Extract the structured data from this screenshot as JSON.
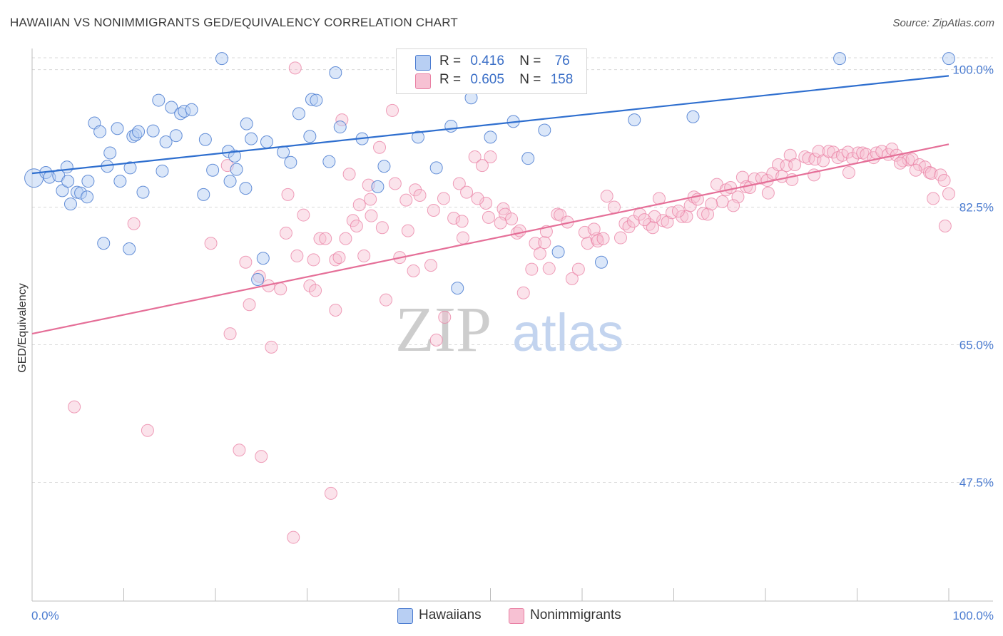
{
  "title": "HAWAIIAN VS NONIMMIGRANTS GED/EQUIVALENCY CORRELATION CHART",
  "source": "Source: ZipAtlas.com",
  "colors": {
    "blue": "#4a7bd0",
    "blue_fill": "#b8cff3",
    "blue_line": "#2f6fcf",
    "pink": "#e97fa3",
    "pink_fill": "#f7c1d3",
    "pink_line": "#e56f98",
    "grid": "#d9d9d9",
    "watermark": "#c9c9c9"
  },
  "legend": {
    "rows": [
      {
        "r_label": "R =",
        "r_value": "0.416",
        "n_label": "N =",
        "n_value": "76"
      },
      {
        "r_label": "R =",
        "r_value": "0.605",
        "n_label": "N =",
        "n_value": "158"
      }
    ]
  },
  "watermark": {
    "zip": "ZIP",
    "atlas": "atlas"
  },
  "chart_data": {
    "type": "scatter",
    "xlabel": "",
    "ylabel": "GED/Equivalency",
    "xlim": [
      0,
      100
    ],
    "ylim": [
      32.4,
      102.5
    ],
    "x_tick_labels": [
      "0.0%",
      "100.0%"
    ],
    "y_ticks": [
      100.0,
      82.5,
      65.0,
      47.5
    ],
    "y_tick_labels": [
      "100.0%",
      "82.5%",
      "65.0%",
      "47.5%"
    ],
    "grid": "horizontal dashed",
    "legend_placement": "bottom-center",
    "series": [
      {
        "name": "Hawaiians",
        "color": "#4a7bd0",
        "trend": {
          "x": [
            0,
            100
          ],
          "y": [
            86.8,
            99.2
          ]
        },
        "points": [
          [
            0.2,
            86.2
          ],
          [
            1.5,
            86.9
          ],
          [
            1.9,
            86.3
          ],
          [
            2.9,
            86.5
          ],
          [
            3.8,
            87.6
          ],
          [
            3.3,
            84.6
          ],
          [
            3.9,
            85.8
          ],
          [
            4.2,
            82.9
          ],
          [
            4.9,
            84.4
          ],
          [
            5.3,
            84.3
          ],
          [
            6.0,
            83.8
          ],
          [
            6.1,
            85.8
          ],
          [
            6.8,
            93.2
          ],
          [
            7.4,
            92.1
          ],
          [
            7.8,
            77.9
          ],
          [
            8.2,
            87.7
          ],
          [
            8.5,
            89.4
          ],
          [
            9.3,
            92.5
          ],
          [
            9.6,
            85.8
          ],
          [
            10.6,
            77.2
          ],
          [
            10.7,
            87.5
          ],
          [
            11.0,
            91.5
          ],
          [
            11.3,
            91.7
          ],
          [
            11.6,
            92.1
          ],
          [
            12.1,
            84.4
          ],
          [
            13.2,
            92.2
          ],
          [
            13.8,
            96.1
          ],
          [
            14.2,
            87.1
          ],
          [
            14.6,
            90.8
          ],
          [
            15.2,
            95.2
          ],
          [
            15.7,
            91.6
          ],
          [
            16.2,
            94.4
          ],
          [
            16.6,
            94.7
          ],
          [
            17.4,
            94.9
          ],
          [
            18.9,
            91.1
          ],
          [
            18.7,
            84.1
          ],
          [
            19.7,
            87.2
          ],
          [
            20.7,
            101.4
          ],
          [
            21.4,
            89.6
          ],
          [
            21.6,
            85.8
          ],
          [
            22.1,
            89.0
          ],
          [
            22.3,
            87.3
          ],
          [
            23.3,
            84.9
          ],
          [
            23.4,
            93.1
          ],
          [
            23.9,
            91.2
          ],
          [
            24.6,
            73.3
          ],
          [
            25.2,
            76.0
          ],
          [
            25.6,
            90.8
          ],
          [
            27.4,
            89.5
          ],
          [
            28.2,
            88.2
          ],
          [
            29.1,
            94.4
          ],
          [
            30.3,
            91.5
          ],
          [
            30.5,
            96.2
          ],
          [
            31.0,
            96.1
          ],
          [
            32.4,
            88.3
          ],
          [
            33.1,
            99.6
          ],
          [
            33.6,
            92.7
          ],
          [
            36.0,
            91.2
          ],
          [
            37.7,
            85.1
          ],
          [
            38.4,
            87.7
          ],
          [
            42.1,
            91.4
          ],
          [
            44.1,
            87.5
          ],
          [
            45.7,
            92.8
          ],
          [
            46.4,
            72.2
          ],
          [
            47.9,
            96.4
          ],
          [
            50.0,
            91.4
          ],
          [
            52.5,
            93.4
          ],
          [
            54.1,
            88.7
          ],
          [
            65.7,
            93.6
          ],
          [
            72.1,
            94.0
          ],
          [
            88.1,
            101.4
          ],
          [
            100.0,
            101.4
          ],
          [
            48.9,
            101.2
          ],
          [
            55.9,
            92.3
          ],
          [
            57.4,
            76.8
          ],
          [
            62.1,
            75.5
          ]
        ]
      },
      {
        "name": "Nonimmigrants",
        "color": "#e97fa3",
        "trend": {
          "x": [
            0,
            100
          ],
          "y": [
            66.4,
            90.5
          ]
        },
        "points": [
          [
            4.6,
            57.1
          ],
          [
            11.1,
            80.4
          ],
          [
            12.6,
            54.1
          ],
          [
            19.5,
            77.9
          ],
          [
            21.3,
            87.8
          ],
          [
            21.6,
            66.4
          ],
          [
            22.6,
            51.6
          ],
          [
            23.3,
            75.5
          ],
          [
            23.7,
            70.1
          ],
          [
            24.8,
            73.7
          ],
          [
            25.0,
            50.8
          ],
          [
            25.8,
            72.5
          ],
          [
            26.1,
            64.7
          ],
          [
            27.1,
            72.1
          ],
          [
            27.7,
            79.2
          ],
          [
            27.9,
            84.1
          ],
          [
            28.5,
            40.5
          ],
          [
            28.7,
            100.2
          ],
          [
            28.9,
            76.3
          ],
          [
            29.6,
            81.5
          ],
          [
            30.3,
            72.5
          ],
          [
            30.7,
            75.8
          ],
          [
            30.9,
            71.9
          ],
          [
            31.4,
            78.5
          ],
          [
            32.0,
            78.5
          ],
          [
            32.6,
            46.1
          ],
          [
            33.1,
            69.4
          ],
          [
            33.1,
            75.8
          ],
          [
            33.5,
            76.1
          ],
          [
            33.8,
            93.6
          ],
          [
            34.6,
            86.7
          ],
          [
            35.0,
            80.8
          ],
          [
            35.4,
            80.1
          ],
          [
            36.2,
            76.3
          ],
          [
            36.7,
            85.3
          ],
          [
            37.0,
            81.4
          ],
          [
            37.9,
            90.1
          ],
          [
            38.6,
            70.7
          ],
          [
            39.3,
            94.8
          ],
          [
            40.1,
            76.1
          ],
          [
            41.0,
            79.5
          ],
          [
            41.6,
            74.4
          ],
          [
            41.8,
            84.7
          ],
          [
            42.3,
            84.0
          ],
          [
            43.5,
            75.1
          ],
          [
            44.1,
            65.6
          ],
          [
            44.9,
            83.6
          ],
          [
            45.0,
            68.5
          ],
          [
            46.0,
            81.1
          ],
          [
            46.6,
            85.5
          ],
          [
            47.0,
            78.6
          ],
          [
            47.4,
            84.4
          ],
          [
            48.3,
            88.9
          ],
          [
            49.1,
            87.8
          ],
          [
            49.5,
            83.0
          ],
          [
            49.8,
            81.2
          ],
          [
            50.0,
            88.9
          ],
          [
            51.4,
            82.3
          ],
          [
            51.6,
            81.6
          ],
          [
            52.3,
            81.0
          ],
          [
            52.9,
            79.2
          ],
          [
            53.6,
            71.6
          ],
          [
            54.5,
            74.6
          ],
          [
            54.9,
            77.9
          ],
          [
            55.4,
            76.6
          ],
          [
            55.9,
            78.0
          ],
          [
            56.4,
            74.7
          ],
          [
            57.3,
            81.6
          ],
          [
            57.6,
            81.5
          ],
          [
            58.9,
            73.4
          ],
          [
            59.6,
            74.6
          ],
          [
            60.3,
            79.3
          ],
          [
            60.6,
            77.9
          ],
          [
            61.6,
            78.5
          ],
          [
            61.7,
            78.2
          ],
          [
            62.3,
            78.5
          ],
          [
            62.7,
            83.9
          ],
          [
            63.5,
            82.5
          ],
          [
            64.7,
            80.4
          ],
          [
            65.1,
            80.0
          ],
          [
            65.6,
            80.7
          ],
          [
            66.3,
            81.6
          ],
          [
            67.3,
            80.3
          ],
          [
            67.7,
            79.9
          ],
          [
            68.4,
            83.6
          ],
          [
            68.8,
            80.8
          ],
          [
            69.3,
            80.6
          ],
          [
            69.8,
            81.8
          ],
          [
            70.9,
            81.3
          ],
          [
            71.4,
            81.3
          ],
          [
            71.8,
            82.7
          ],
          [
            72.2,
            83.8
          ],
          [
            73.2,
            81.7
          ],
          [
            73.7,
            81.6
          ],
          [
            74.7,
            85.4
          ],
          [
            75.3,
            83.2
          ],
          [
            75.7,
            84.7
          ],
          [
            76.2,
            85.0
          ],
          [
            77.0,
            83.8
          ],
          [
            77.5,
            86.3
          ],
          [
            77.9,
            85.1
          ],
          [
            78.3,
            85.0
          ],
          [
            78.8,
            86.1
          ],
          [
            79.6,
            86.2
          ],
          [
            80.2,
            85.9
          ],
          [
            80.8,
            86.8
          ],
          [
            81.4,
            87.9
          ],
          [
            81.8,
            86.4
          ],
          [
            82.3,
            87.8
          ],
          [
            82.7,
            89.1
          ],
          [
            83.2,
            87.9
          ],
          [
            84.3,
            88.9
          ],
          [
            84.7,
            88.7
          ],
          [
            85.4,
            88.6
          ],
          [
            85.8,
            89.6
          ],
          [
            86.3,
            88.4
          ],
          [
            86.9,
            89.6
          ],
          [
            87.4,
            89.5
          ],
          [
            87.9,
            88.8
          ],
          [
            88.4,
            89.1
          ],
          [
            89.0,
            89.5
          ],
          [
            89.5,
            88.7
          ],
          [
            90.1,
            89.4
          ],
          [
            90.6,
            89.4
          ],
          [
            91.0,
            89.2
          ],
          [
            91.8,
            88.8
          ],
          [
            92.1,
            89.4
          ],
          [
            92.7,
            89.6
          ],
          [
            93.4,
            89.2
          ],
          [
            93.8,
            89.9
          ],
          [
            94.3,
            89.1
          ],
          [
            95.0,
            88.4
          ],
          [
            95.6,
            88.5
          ],
          [
            96.0,
            88.6
          ],
          [
            96.8,
            87.9
          ],
          [
            97.4,
            87.6
          ],
          [
            97.9,
            86.9
          ],
          [
            98.1,
            86.8
          ],
          [
            99.1,
            86.6
          ],
          [
            99.5,
            85.9
          ],
          [
            100.0,
            84.2
          ],
          [
            99.6,
            80.1
          ],
          [
            98.3,
            83.6
          ],
          [
            96.4,
            87.2
          ],
          [
            94.7,
            88.1
          ],
          [
            89.1,
            86.9
          ],
          [
            85.3,
            86.6
          ],
          [
            82.9,
            86.0
          ],
          [
            80.3,
            84.3
          ],
          [
            76.5,
            82.7
          ],
          [
            74.1,
            82.9
          ],
          [
            72.6,
            83.5
          ],
          [
            70.5,
            82.0
          ],
          [
            67.9,
            81.3
          ],
          [
            66.8,
            80.9
          ],
          [
            64.2,
            78.6
          ],
          [
            61.3,
            79.7
          ],
          [
            58.4,
            80.6
          ],
          [
            56.1,
            79.4
          ],
          [
            53.2,
            79.5
          ],
          [
            51.1,
            80.5
          ],
          [
            48.6,
            83.6
          ],
          [
            46.9,
            80.7
          ],
          [
            43.8,
            82.1
          ],
          [
            40.8,
            83.4
          ],
          [
            39.6,
            85.5
          ],
          [
            38.2,
            79.9
          ],
          [
            36.9,
            83.5
          ],
          [
            35.7,
            82.8
          ],
          [
            34.2,
            78.5
          ]
        ]
      }
    ]
  },
  "bottom_legend": [
    "Hawaiians",
    "Nonimmigrants"
  ]
}
